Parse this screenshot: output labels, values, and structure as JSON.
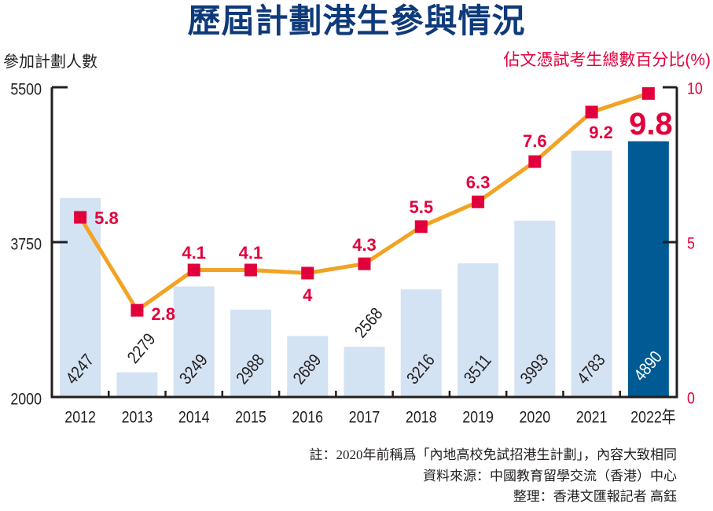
{
  "title": "歷屆計劃港生參與情況",
  "colors": {
    "title": "#0f3a7a",
    "bar": "#d3e3f4",
    "bar_highlight": "#005b94",
    "line": "#f2a324",
    "marker": "#e2003c",
    "percent_label": "#e2003c",
    "axis": "#231f20",
    "text": "#231f20",
    "bar_label_highlight": "#ffffff"
  },
  "chart_data": {
    "type": "bar+line",
    "title": "歷屆計劃港生參與情況",
    "categories": [
      "2012",
      "2013",
      "2014",
      "2015",
      "2016",
      "2017",
      "2018",
      "2019",
      "2020",
      "2021",
      "2022年"
    ],
    "highlight_category": "2022年",
    "ylabel_left": "參加計劃人數",
    "ylabel_right": "佔文憑試考生總數百分比(%)",
    "ylim_left": [
      2000,
      5500
    ],
    "yticks_left": [
      5500,
      3750,
      2000
    ],
    "ylim_right": [
      0,
      10
    ],
    "yticks_right": [
      10,
      5,
      0
    ],
    "grid": false,
    "series": [
      {
        "name": "參加計劃人數",
        "type": "bar",
        "axis": "left",
        "values": [
          4247,
          2279,
          3249,
          2988,
          2689,
          2568,
          3216,
          3511,
          3993,
          4783,
          4890
        ],
        "labels": [
          "4247",
          "2279",
          "3249",
          "2988",
          "2689",
          "2568",
          "3216",
          "3511",
          "3993",
          "4783",
          "4890"
        ]
      },
      {
        "name": "佔文憑試考生總數百分比(%)",
        "type": "line",
        "axis": "right",
        "values": [
          5.8,
          2.8,
          4.1,
          4.1,
          4,
          4.3,
          5.5,
          6.3,
          7.6,
          9.2,
          9.8
        ],
        "labels": [
          "5.8",
          "2.8",
          "4.1",
          "4.1",
          "4",
          "4.3",
          "5.5",
          "6.3",
          "7.6",
          "9.2",
          "9.8"
        ]
      }
    ]
  },
  "notes": [
    "註：2020年前稱爲「內地高校免試招港生計劃」，內容大致相同",
    "資料來源：中國教育留學交流（香港）中心",
    "整理：香港文匯報記者 高鈺"
  ]
}
